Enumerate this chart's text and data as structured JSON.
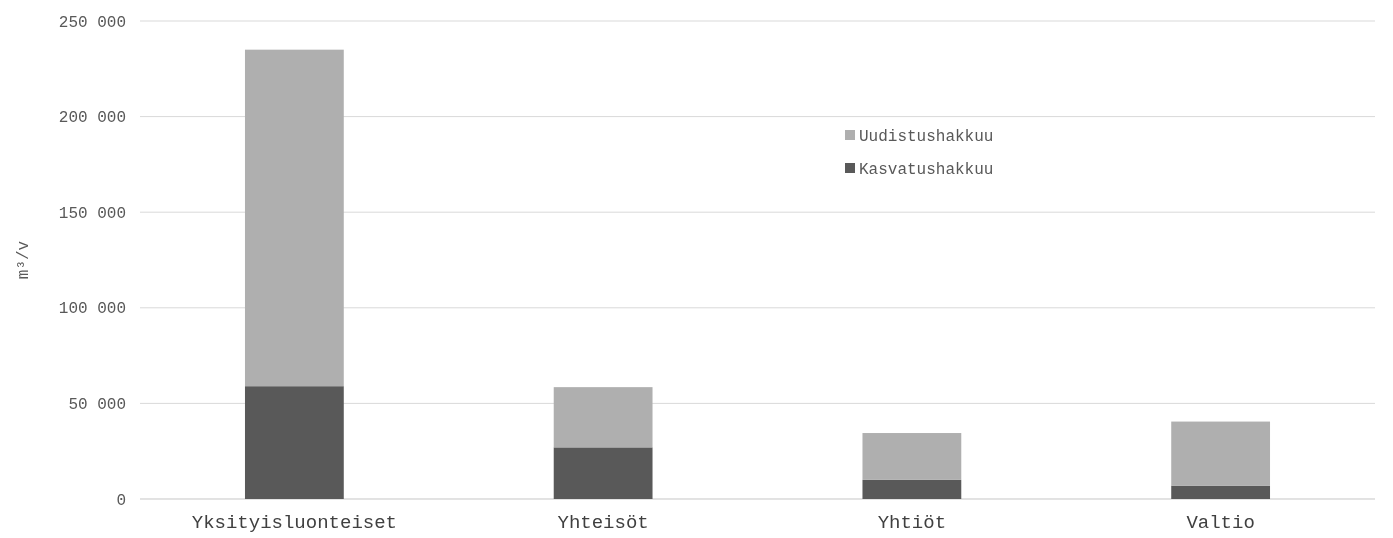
{
  "chart_data": {
    "type": "bar",
    "stacked": true,
    "ylabel": "m³/v",
    "categories": [
      "Yksityisluonteiset",
      "Yhteisöt",
      "Yhtiöt",
      "Valtio"
    ],
    "series": [
      {
        "name": "Kasvatushakkuu",
        "color": "#595959",
        "values": [
          59000,
          27000,
          10000,
          7000
        ]
      },
      {
        "name": "Uudistushakkuu",
        "color": "#afafaf",
        "values": [
          176000,
          31500,
          24500,
          33500
        ]
      }
    ],
    "ylim": [
      0,
      250000
    ],
    "yticks": [
      {
        "value": 0,
        "label": "0"
      },
      {
        "value": 50000,
        "label": "50 000"
      },
      {
        "value": 100000,
        "label": "100 000"
      },
      {
        "value": 150000,
        "label": "150 000"
      },
      {
        "value": 200000,
        "label": "200 000"
      },
      {
        "value": 250000,
        "label": "250 000"
      }
    ],
    "grid": true,
    "legend": "top right"
  }
}
